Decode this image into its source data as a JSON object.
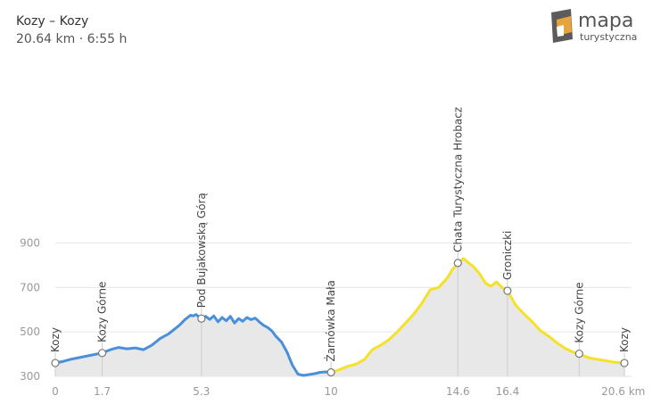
{
  "route": {
    "title": "Kozy – Kozy",
    "stats": "20.64 km · 6:55 h"
  },
  "logo": {
    "main": "mapa",
    "sub": "turystyczna",
    "colors": {
      "orange": "#e8a33c",
      "dark": "#5b5b5b"
    }
  },
  "chart_data": {
    "type": "area",
    "x_unit": "km",
    "xlim": [
      0,
      20.64
    ],
    "ylim": [
      300,
      950
    ],
    "y_ticks": [
      300,
      500,
      700,
      900
    ],
    "x_ticks": [
      {
        "value": 0,
        "label": "0"
      },
      {
        "value": 1.7,
        "label": "1.7"
      },
      {
        "value": 5.3,
        "label": "5.3"
      },
      {
        "value": 10,
        "label": "10"
      },
      {
        "value": 14.6,
        "label": "14.6"
      },
      {
        "value": 16.4,
        "label": "16.4"
      },
      {
        "value": 20.6,
        "label": "20.6 km"
      }
    ],
    "colors": {
      "segment1": "#4a90d9",
      "segment2": "#f5e12a",
      "fill": "#e8e8e8",
      "grid": "#e6e6e6",
      "marker": "#cccccc"
    },
    "segments": [
      {
        "x": [
          0,
          0.3,
          0.6,
          1.0,
          1.4,
          1.7,
          2.0,
          2.3,
          2.6,
          2.9,
          3.2,
          3.5,
          3.8,
          4.1,
          4.3,
          4.5,
          4.7,
          4.9,
          5.0,
          5.1,
          5.3,
          5.45,
          5.6,
          5.75,
          5.9,
          6.05,
          6.2,
          6.35,
          6.5,
          6.65,
          6.8,
          6.95,
          7.1,
          7.25,
          7.4,
          7.55,
          7.7,
          7.85,
          8.0,
          8.2,
          8.4,
          8.6,
          8.8,
          9.0,
          9.2,
          9.4,
          9.6,
          9.8,
          10.0
        ],
        "y": [
          360,
          368,
          378,
          388,
          398,
          405,
          420,
          430,
          424,
          428,
          420,
          440,
          470,
          490,
          510,
          530,
          555,
          575,
          572,
          578,
          560,
          570,
          556,
          572,
          545,
          565,
          550,
          570,
          540,
          560,
          548,
          565,
          555,
          562,
          545,
          530,
          520,
          505,
          480,
          455,
          410,
          350,
          310,
          304,
          308,
          312,
          318,
          320,
          318
        ]
      },
      {
        "x": [
          10.0,
          10.3,
          10.6,
          10.9,
          11.2,
          11.5,
          11.8,
          12.1,
          12.4,
          12.7,
          13.0,
          13.3,
          13.6,
          13.9,
          14.2,
          14.4,
          14.6,
          14.8,
          15.0,
          15.2,
          15.4,
          15.6,
          15.8,
          16.0,
          16.2,
          16.4,
          16.7,
          17.0,
          17.3,
          17.6,
          17.9,
          18.2,
          18.5,
          18.8,
          19.1,
          19.4,
          19.7,
          20.0,
          20.3,
          20.64
        ],
        "y": [
          318,
          330,
          345,
          355,
          375,
          420,
          440,
          465,
          500,
          540,
          580,
          630,
          690,
          700,
          740,
          780,
          810,
          830,
          810,
          790,
          760,
          720,
          705,
          725,
          700,
          685,
          620,
          580,
          545,
          505,
          480,
          450,
          425,
          408,
          395,
          382,
          376,
          370,
          363,
          360
        ]
      }
    ],
    "waypoints": [
      {
        "x": 0,
        "y": 360,
        "name": "Kozy"
      },
      {
        "x": 1.7,
        "y": 405,
        "name": "Kozy Górne"
      },
      {
        "x": 5.3,
        "y": 560,
        "name": "Pod Bujakowską Górą"
      },
      {
        "x": 10.0,
        "y": 318,
        "name": "Żarnówka Mała"
      },
      {
        "x": 14.6,
        "y": 810,
        "name": "Chata Turystyczna Hrobacz"
      },
      {
        "x": 16.4,
        "y": 685,
        "name": "Groniczki"
      },
      {
        "x": 19.0,
        "y": 402,
        "name": "Kozy Górne"
      },
      {
        "x": 20.64,
        "y": 360,
        "name": "Kozy"
      }
    ]
  }
}
